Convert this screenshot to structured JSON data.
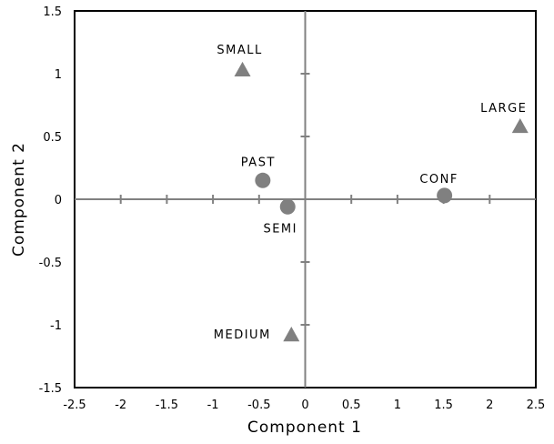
{
  "chart_data": {
    "type": "scatter",
    "xlabel": "Component 1",
    "ylabel": "Component 2",
    "xlim": [
      -2.5,
      2.5
    ],
    "ylim": [
      -1.5,
      1.5
    ],
    "xticks": [
      "-2.5",
      "-2",
      "-1.5",
      "-1",
      "-0.5",
      "0",
      "0.5",
      "1",
      "1.5",
      "2",
      "2.5"
    ],
    "yticks": [
      "1.5",
      "1",
      "0.5",
      "0",
      "-0.5",
      "-1",
      "-1.5"
    ],
    "grid": false,
    "colors": {
      "marker": "#808080",
      "axis": "#808080",
      "frame": "#000000"
    },
    "points": [
      {
        "label": "SMALL",
        "x": -0.68,
        "y": 1.03,
        "marker": "triangle"
      },
      {
        "label": "LARGE",
        "x": 2.33,
        "y": 0.58,
        "marker": "triangle"
      },
      {
        "label": "MEDIUM",
        "x": -0.15,
        "y": -1.08,
        "marker": "triangle"
      },
      {
        "label": "PAST",
        "x": -0.46,
        "y": 0.15,
        "marker": "circle"
      },
      {
        "label": "SEMI",
        "x": -0.19,
        "y": -0.06,
        "marker": "circle"
      },
      {
        "label": "CONF",
        "x": 1.51,
        "y": 0.03,
        "marker": "circle"
      }
    ]
  }
}
